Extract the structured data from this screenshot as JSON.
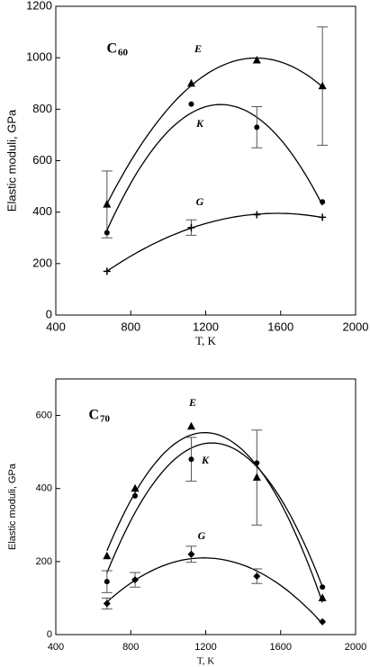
{
  "chart_data": [
    {
      "type": "scatter",
      "title_main": "C",
      "title_sub": "60",
      "xlabel": "T, K",
      "ylabel": "Elastic moduli, GPa",
      "xlim": [
        400,
        2000
      ],
      "xticks": [
        400,
        800,
        1200,
        1600,
        2000
      ],
      "ylim": [
        0,
        1200
      ],
      "yticks": [
        0,
        200,
        400,
        600,
        800,
        1000,
        1200
      ],
      "fit": "quadratic",
      "color": "#000000",
      "series": [
        {
          "name": "E",
          "marker": "triangle",
          "x": [
            673,
            1123,
            1473,
            1823
          ],
          "values": [
            430,
            900,
            990,
            890
          ],
          "errors": [
            130,
            null,
            null,
            230
          ]
        },
        {
          "name": "K",
          "marker": "circle",
          "x": [
            673,
            1123,
            1473,
            1823
          ],
          "values": [
            320,
            820,
            730,
            440
          ],
          "errors": [
            null,
            null,
            80,
            null
          ]
        },
        {
          "name": "G",
          "marker": "plus",
          "x": [
            673,
            1123,
            1473,
            1823
          ],
          "values": [
            170,
            340,
            390,
            380
          ],
          "errors": [
            null,
            30,
            null,
            null
          ]
        }
      ]
    },
    {
      "type": "scatter",
      "title_main": "C",
      "title_sub": "70",
      "xlabel": "T, K",
      "ylabel": "Elastic moduli, GPa",
      "xlim": [
        400,
        2000
      ],
      "xticks": [
        400,
        800,
        1200,
        1600,
        2000
      ],
      "ylim": [
        0,
        700
      ],
      "yticks": [
        0,
        200,
        400,
        600
      ],
      "fit": "quadratic",
      "color": "#000000",
      "series": [
        {
          "name": "E",
          "marker": "triangle",
          "x": [
            673,
            823,
            1123,
            1473,
            1823
          ],
          "values": [
            215,
            400,
            570,
            430,
            100
          ],
          "errors": [
            null,
            null,
            null,
            130,
            null
          ]
        },
        {
          "name": "K",
          "marker": "circle",
          "x": [
            673,
            823,
            1123,
            1473,
            1823
          ],
          "values": [
            145,
            380,
            480,
            470,
            130
          ],
          "errors": [
            30,
            null,
            60,
            null,
            null
          ]
        },
        {
          "name": "G",
          "marker": "diamond",
          "x": [
            673,
            823,
            1123,
            1473,
            1823
          ],
          "values": [
            85,
            150,
            220,
            160,
            35
          ],
          "errors": [
            15,
            20,
            22,
            20,
            null
          ]
        }
      ]
    }
  ]
}
